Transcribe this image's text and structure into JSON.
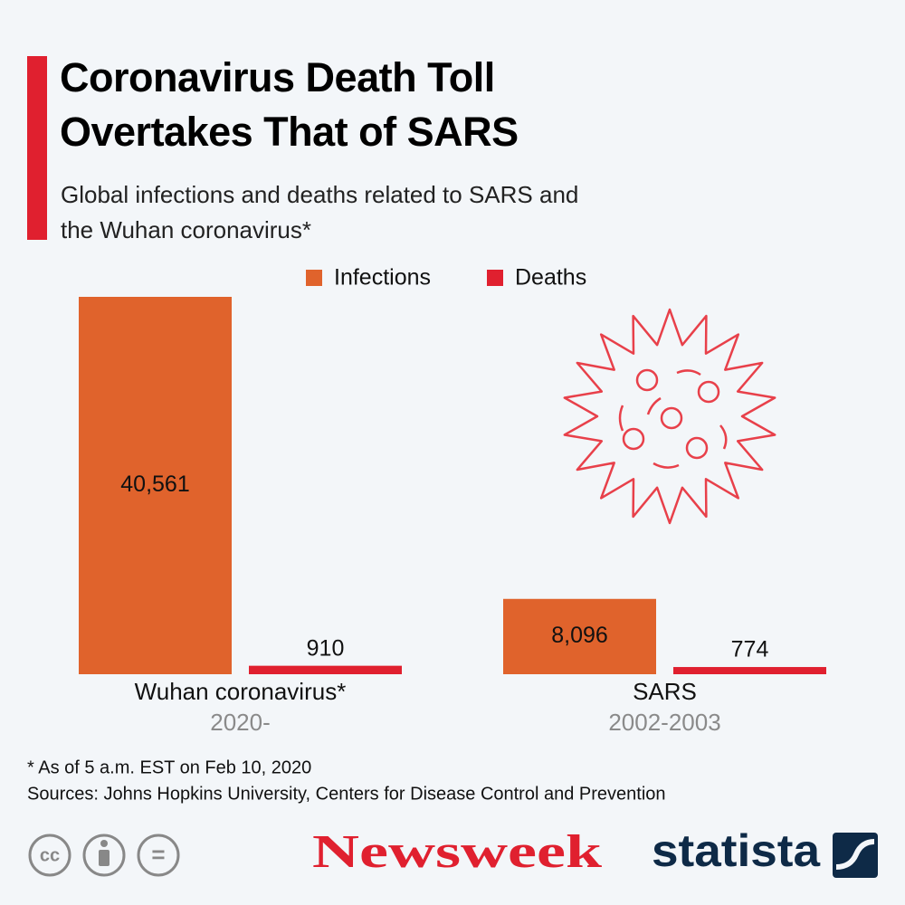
{
  "chart_data": {
    "type": "bar",
    "title": "Coronavirus Death Toll Overtakes That of SARS",
    "subtitle": "Global infections and deaths related to SARS and the Wuhan coronavirus*",
    "categories": [
      "Wuhan coronavirus*",
      "SARS"
    ],
    "category_periods": [
      "2020-",
      "2002-2003"
    ],
    "series": [
      {
        "name": "Infections",
        "color": "#e0632c",
        "values": [
          40561,
          8096
        ],
        "value_labels": [
          "40,561",
          "8,096"
        ]
      },
      {
        "name": "Deaths",
        "color": "#e0202f",
        "values": [
          910,
          774
        ],
        "value_labels": [
          "910",
          "774"
        ]
      }
    ],
    "legend": "top",
    "footnote": "* As of 5 a.m. EST on Feb 10, 2020",
    "source": "Sources: Johns Hopkins University, Centers for Disease Control and Prevention",
    "license": [
      "cc",
      "="
    ],
    "logos": [
      "Newsweek",
      "statista"
    ]
  }
}
